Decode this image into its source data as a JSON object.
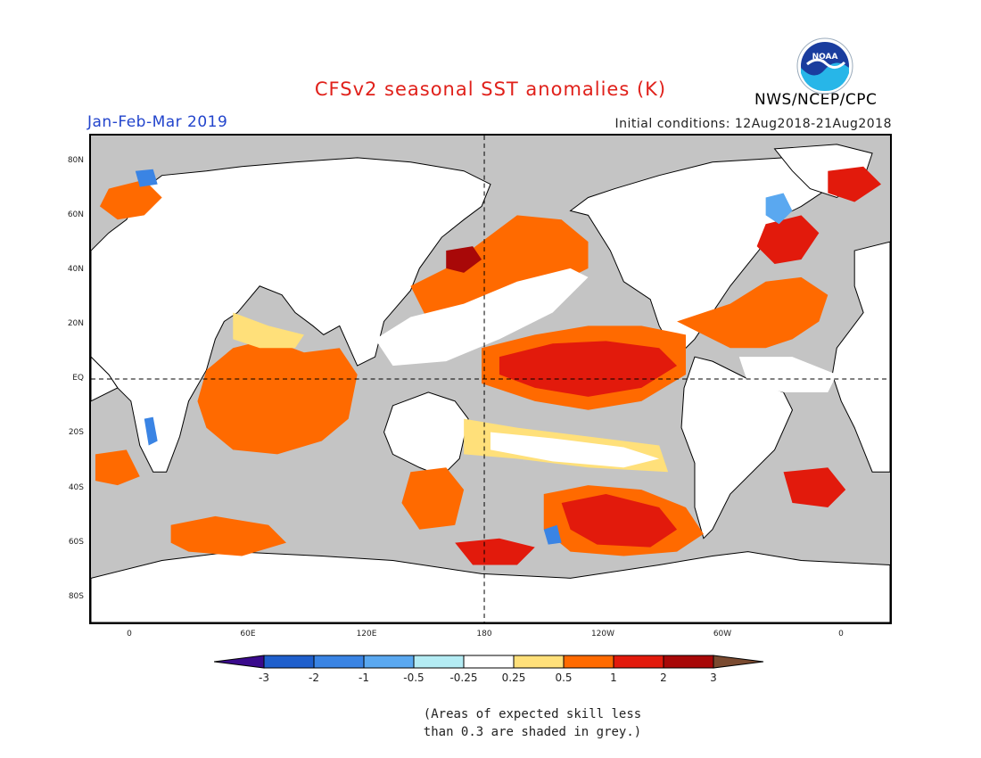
{
  "header": {
    "title": "CFSv2 seasonal SST anomalies (K)",
    "period": "Jan-Feb-Mar 2019",
    "organization": "NWS/NCEP/CPC",
    "initial_conditions": "Initial conditions: 12Aug2018-21Aug2018",
    "logo_text": "NOAA"
  },
  "map": {
    "projection": "equirectangular",
    "center_longitude": "180",
    "latitude_labels": [
      "80N",
      "60N",
      "40N",
      "20N",
      "EQ",
      "20S",
      "40S",
      "60S",
      "80S"
    ],
    "longitude_labels": [
      "0",
      "60E",
      "120E",
      "180",
      "120W",
      "60W",
      "0"
    ],
    "land_color": "#ffffff",
    "low_skill_color": "#c4c4c4"
  },
  "colorbar": {
    "tick_labels": [
      "-3",
      "-2",
      "-1",
      "-0.5",
      "-0.25",
      "0.25",
      "0.5",
      "1",
      "2",
      "3"
    ],
    "colors": [
      "#3a0a8c",
      "#1f5fcc",
      "#3a84e4",
      "#5aa8f0",
      "#b4ecf4",
      "#ffffff",
      "#ffe07a",
      "#ff6a00",
      "#e21a0c",
      "#a80808",
      "#7a4a30"
    ]
  },
  "note": {
    "line1": "(Areas of expected skill less",
    "line2": "than 0.3 are shaded in grey.)"
  }
}
